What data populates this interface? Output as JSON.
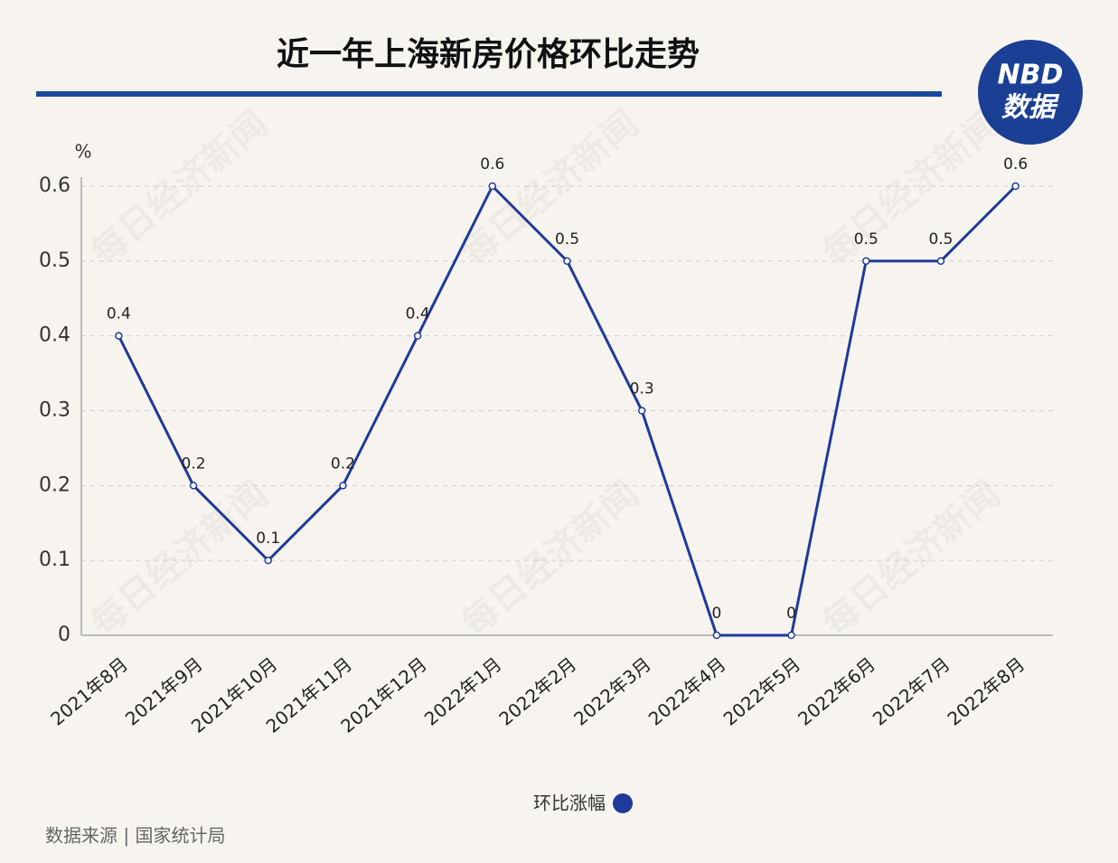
{
  "chart_data": {
    "type": "line",
    "title": "近一年上海新房价格环比走势",
    "y_label": "%",
    "categories": [
      "2021年8月",
      "2021年9月",
      "2021年10月",
      "2021年11月",
      "2021年12月",
      "2022年1月",
      "2022年2月",
      "2022年3月",
      "2022年4月",
      "2022年5月",
      "2022年6月",
      "2022年7月",
      "2022年8月"
    ],
    "series": [
      {
        "name": "环比涨幅",
        "color": "#1f3a9a",
        "values": [
          0.4,
          0.2,
          0.1,
          0.2,
          0.4,
          0.6,
          0.5,
          0.3,
          0,
          0,
          0.5,
          0.5,
          0.6
        ]
      }
    ],
    "ylim": [
      0,
      0.6
    ],
    "yticks": [
      0,
      0.1,
      0.2,
      0.3,
      0.4,
      0.5,
      0.6
    ],
    "grid": true,
    "source": "数据来源 | 国家统计局",
    "logo": {
      "top": "NBD",
      "bottom": "数据"
    },
    "watermark": "每日经济新闻"
  }
}
